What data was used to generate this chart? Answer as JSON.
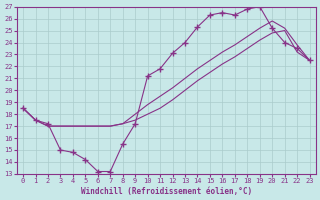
{
  "xlabel": "Windchill (Refroidissement éolien,°C)",
  "xlim": [
    -0.5,
    23.5
  ],
  "ylim": [
    13,
    27
  ],
  "xticks": [
    0,
    1,
    2,
    3,
    4,
    5,
    6,
    7,
    8,
    9,
    10,
    11,
    12,
    13,
    14,
    15,
    16,
    17,
    18,
    19,
    20,
    21,
    22,
    23
  ],
  "yticks": [
    13,
    14,
    15,
    16,
    17,
    18,
    19,
    20,
    21,
    22,
    23,
    24,
    25,
    26,
    27
  ],
  "bg_color": "#c8e8e8",
  "grid_color": "#aacccc",
  "line_color": "#883388",
  "line1_x": [
    0,
    1,
    2,
    3,
    4,
    5,
    6,
    7,
    8,
    9,
    10,
    11,
    12,
    13,
    14,
    15,
    16,
    17,
    18,
    19,
    20,
    21,
    22,
    23
  ],
  "line1_y": [
    18.5,
    17.5,
    17.2,
    15.0,
    14.8,
    14.2,
    13.2,
    13.2,
    15.5,
    17.2,
    21.2,
    21.8,
    23.1,
    24.0,
    25.3,
    26.3,
    26.5,
    26.3,
    26.8,
    27.0,
    25.2,
    24.0,
    23.5,
    22.5
  ],
  "line2_x": [
    0,
    1,
    2,
    3,
    4,
    5,
    6,
    7,
    8,
    9,
    10,
    11,
    12,
    13,
    14,
    15,
    16,
    17,
    18,
    19,
    20,
    21,
    22,
    23
  ],
  "line2_y": [
    18.5,
    17.5,
    17.0,
    17.0,
    17.0,
    17.0,
    17.0,
    17.0,
    17.2,
    17.5,
    18.0,
    18.5,
    19.2,
    20.0,
    20.8,
    21.5,
    22.2,
    22.8,
    23.5,
    24.2,
    24.8,
    25.0,
    23.2,
    22.5
  ],
  "line3_x": [
    0,
    1,
    2,
    3,
    4,
    5,
    6,
    7,
    8,
    9,
    10,
    11,
    12,
    13,
    14,
    15,
    16,
    17,
    18,
    19,
    20,
    21,
    22,
    23
  ],
  "line3_y": [
    18.5,
    17.5,
    17.0,
    17.0,
    17.0,
    17.0,
    17.0,
    17.0,
    17.2,
    18.0,
    18.8,
    19.5,
    20.2,
    21.0,
    21.8,
    22.5,
    23.2,
    23.8,
    24.5,
    25.2,
    25.8,
    25.2,
    23.8,
    22.5
  ]
}
